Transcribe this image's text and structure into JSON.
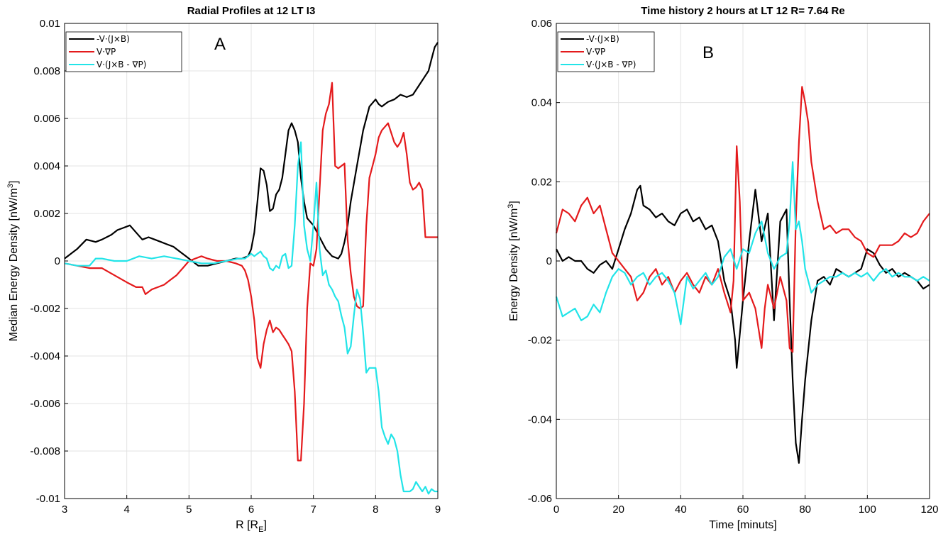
{
  "chart_data": [
    {
      "type": "line",
      "panel_label": "A",
      "title": "Radial Profiles at 12 LT I3",
      "xlabel": "R [R_E]",
      "xlabel_main": "R [R",
      "xlabel_sub": "E",
      "xlabel_close": "]",
      "ylabel": "Median Energy Density [nW/m3]",
      "ylabel_main": "Median Energy Density [nW/m",
      "ylabel_sup": "3",
      "ylabel_close": "]",
      "xlim": [
        3,
        9
      ],
      "ylim": [
        -0.01,
        0.01
      ],
      "xticks": [
        "3",
        "4",
        "5",
        "6",
        "7",
        "8",
        "9"
      ],
      "yticks": [
        "-0.01",
        "-0.008",
        "-0.006",
        "-0.004",
        "-0.002",
        "0",
        "0.002",
        "0.004",
        "0.006",
        "0.008",
        "0.01"
      ],
      "grid": true,
      "legend_position": "top-left",
      "series": [
        {
          "name": "-V·(J×B)",
          "color": "#000000",
          "x": [
            3.0,
            3.1,
            3.2,
            3.35,
            3.5,
            3.6,
            3.75,
            3.85,
            3.95,
            4.05,
            4.15,
            4.25,
            4.35,
            4.45,
            4.55,
            4.65,
            4.75,
            4.85,
            4.95,
            5.05,
            5.15,
            5.3,
            5.45,
            5.6,
            5.75,
            5.85,
            5.95,
            6.0,
            6.05,
            6.1,
            6.15,
            6.2,
            6.25,
            6.3,
            6.35,
            6.4,
            6.45,
            6.5,
            6.55,
            6.6,
            6.65,
            6.7,
            6.75,
            6.8,
            6.85,
            6.9,
            7.0,
            7.1,
            7.2,
            7.3,
            7.4,
            7.45,
            7.5,
            7.55,
            7.6,
            7.7,
            7.8,
            7.9,
            8.0,
            8.05,
            8.1,
            8.15,
            8.2,
            8.3,
            8.4,
            8.5,
            8.6,
            8.7,
            8.8,
            8.85,
            8.9,
            8.95,
            9.0
          ],
          "y": [
            0.0001,
            0.0003,
            0.0005,
            0.0009,
            0.0008,
            0.0009,
            0.0011,
            0.0013,
            0.0014,
            0.0015,
            0.0012,
            0.0009,
            0.001,
            0.0009,
            0.0008,
            0.0007,
            0.0006,
            0.0004,
            0.0002,
            0.0,
            -0.0002,
            -0.0002,
            -0.0001,
            0.0,
            0.0001,
            0.0001,
            0.0002,
            0.0005,
            0.0012,
            0.0025,
            0.0039,
            0.0038,
            0.0032,
            0.0021,
            0.0022,
            0.0028,
            0.003,
            0.0035,
            0.0045,
            0.0055,
            0.0058,
            0.0055,
            0.005,
            0.0035,
            0.0025,
            0.0018,
            0.0015,
            0.001,
            0.0005,
            0.0002,
            0.0001,
            0.0003,
            0.0008,
            0.0015,
            0.0025,
            0.004,
            0.0055,
            0.0065,
            0.0068,
            0.0066,
            0.0065,
            0.0066,
            0.0067,
            0.0068,
            0.007,
            0.0069,
            0.007,
            0.0074,
            0.0078,
            0.008,
            0.0085,
            0.009,
            0.0092
          ]
        },
        {
          "name": "V·∇P",
          "color": "#e41a1c",
          "x": [
            3.0,
            3.2,
            3.4,
            3.6,
            3.8,
            4.0,
            4.15,
            4.25,
            4.3,
            4.4,
            4.5,
            4.6,
            4.7,
            4.8,
            4.9,
            5.0,
            5.1,
            5.2,
            5.3,
            5.45,
            5.6,
            5.75,
            5.85,
            5.9,
            5.95,
            6.0,
            6.05,
            6.1,
            6.15,
            6.2,
            6.25,
            6.3,
            6.35,
            6.4,
            6.45,
            6.5,
            6.55,
            6.6,
            6.65,
            6.7,
            6.75,
            6.8,
            6.85,
            6.9,
            6.95,
            7.0,
            7.05,
            7.1,
            7.15,
            7.2,
            7.25,
            7.3,
            7.35,
            7.4,
            7.45,
            7.5,
            7.55,
            7.6,
            7.65,
            7.7,
            7.75,
            7.8,
            7.85,
            7.9,
            7.95,
            8.0,
            8.05,
            8.1,
            8.2,
            8.3,
            8.35,
            8.4,
            8.45,
            8.5,
            8.55,
            8.6,
            8.65,
            8.7,
            8.75,
            8.8,
            8.85,
            8.9,
            8.95,
            9.0
          ],
          "y": [
            -0.0001,
            -0.0002,
            -0.0003,
            -0.0003,
            -0.0006,
            -0.0009,
            -0.0011,
            -0.0011,
            -0.0014,
            -0.0012,
            -0.0011,
            -0.001,
            -0.0008,
            -0.0006,
            -0.0003,
            0.0,
            0.0001,
            0.0002,
            0.0001,
            0.0,
            0.0,
            -0.0001,
            -0.0002,
            -0.0004,
            -0.0008,
            -0.0015,
            -0.0025,
            -0.0041,
            -0.0045,
            -0.0035,
            -0.0029,
            -0.0025,
            -0.003,
            -0.0028,
            -0.0029,
            -0.0031,
            -0.0033,
            -0.0035,
            -0.0038,
            -0.0055,
            -0.0084,
            -0.0084,
            -0.006,
            -0.002,
            -0.0001,
            -0.0002,
            0.0005,
            0.003,
            0.0055,
            0.0062,
            0.0066,
            0.0075,
            0.004,
            0.0039,
            0.004,
            0.0041,
            0.0009,
            -0.0005,
            -0.0015,
            -0.0019,
            -0.002,
            -0.0019,
            0.0015,
            0.0035,
            0.004,
            0.0045,
            0.0052,
            0.0055,
            0.0058,
            0.005,
            0.0048,
            0.005,
            0.0054,
            0.0045,
            0.0033,
            0.003,
            0.0031,
            0.0033,
            0.003,
            0.001,
            0.001,
            0.001,
            0.001,
            0.001
          ]
        },
        {
          "name": "V·(J×B - ∇P)",
          "color": "#22e4e8",
          "x": [
            3.0,
            3.2,
            3.4,
            3.5,
            3.6,
            3.8,
            4.0,
            4.2,
            4.4,
            4.6,
            4.8,
            5.0,
            5.2,
            5.4,
            5.6,
            5.8,
            5.9,
            6.0,
            6.05,
            6.1,
            6.15,
            6.2,
            6.25,
            6.3,
            6.35,
            6.4,
            6.45,
            6.5,
            6.55,
            6.6,
            6.65,
            6.7,
            6.75,
            6.8,
            6.85,
            6.9,
            6.95,
            7.0,
            7.05,
            7.1,
            7.15,
            7.2,
            7.25,
            7.3,
            7.35,
            7.4,
            7.45,
            7.5,
            7.55,
            7.6,
            7.65,
            7.7,
            7.75,
            7.8,
            7.85,
            7.9,
            8.0,
            8.05,
            8.1,
            8.15,
            8.2,
            8.25,
            8.3,
            8.35,
            8.4,
            8.45,
            8.5,
            8.55,
            8.6,
            8.65,
            8.7,
            8.75,
            8.8,
            8.85,
            8.9,
            8.95,
            9.0
          ],
          "y": [
            -0.0001,
            -0.0002,
            -0.0002,
            0.0001,
            0.0001,
            0.0,
            0.0,
            0.0002,
            0.0001,
            0.0002,
            0.0001,
            0.0,
            -0.0001,
            -0.0001,
            0.0,
            0.0001,
            0.0001,
            0.0003,
            0.0002,
            0.0003,
            0.0004,
            0.0002,
            0.0001,
            -0.0003,
            -0.0004,
            -0.0002,
            -0.0003,
            0.0002,
            0.0003,
            -0.0003,
            -0.0002,
            0.0015,
            0.004,
            0.005,
            0.0015,
            0.0005,
            0.0,
            0.0015,
            0.0033,
            0.0005,
            -0.0006,
            -0.0004,
            -0.001,
            -0.0012,
            -0.0015,
            -0.0017,
            -0.0023,
            -0.0028,
            -0.0039,
            -0.0036,
            -0.0023,
            -0.0012,
            -0.0016,
            -0.003,
            -0.0047,
            -0.0045,
            -0.0045,
            -0.0055,
            -0.007,
            -0.0074,
            -0.0077,
            -0.0073,
            -0.0075,
            -0.008,
            -0.009,
            -0.0097,
            -0.0097,
            -0.0097,
            -0.0096,
            -0.0093,
            -0.0095,
            -0.0097,
            -0.0095,
            -0.0098,
            -0.0096,
            -0.0097,
            -0.0097
          ]
        }
      ]
    },
    {
      "type": "line",
      "panel_label": "B",
      "title": "Time history 2 hours  at LT 12  R= 7.64 Re",
      "xlabel": "Time [minuts]",
      "ylabel": "Energy Density [nW/m3]",
      "ylabel_main": "Energy Density [nW/m",
      "ylabel_sup": "3",
      "ylabel_close": "]",
      "xlim": [
        0,
        120
      ],
      "ylim": [
        -0.06,
        0.06
      ],
      "xticks": [
        "0",
        "20",
        "40",
        "60",
        "80",
        "100",
        "120"
      ],
      "yticks": [
        "-0.06",
        "-0.04",
        "-0.02",
        "0",
        "0.02",
        "0.04",
        "0.06"
      ],
      "grid": true,
      "legend_position": "top-left",
      "series": [
        {
          "name": "-V·(J×B)",
          "color": "#000000",
          "x": [
            0,
            2,
            4,
            6,
            8,
            10,
            12,
            14,
            16,
            18,
            20,
            22,
            24,
            26,
            27,
            28,
            30,
            32,
            34,
            36,
            38,
            40,
            42,
            44,
            46,
            48,
            50,
            52,
            54,
            56,
            57.5,
            58,
            60,
            62,
            64,
            66,
            68,
            70,
            72,
            74,
            75,
            76,
            77,
            78,
            79,
            80,
            82,
            84,
            86,
            88,
            90,
            92,
            94,
            96,
            98,
            100,
            102,
            104,
            106,
            108,
            110,
            112,
            114,
            116,
            118,
            120
          ],
          "y": [
            0.003,
            0.0,
            0.001,
            0.0,
            0.0,
            -0.002,
            -0.003,
            -0.001,
            0.0,
            -0.002,
            0.003,
            0.008,
            0.012,
            0.018,
            0.019,
            0.014,
            0.013,
            0.011,
            0.012,
            0.01,
            0.009,
            0.012,
            0.013,
            0.01,
            0.011,
            0.008,
            0.009,
            0.005,
            -0.005,
            -0.01,
            -0.02,
            -0.027,
            -0.01,
            0.005,
            0.018,
            0.005,
            0.012,
            -0.015,
            0.01,
            0.013,
            -0.01,
            -0.03,
            -0.046,
            -0.051,
            -0.04,
            -0.03,
            -0.015,
            -0.005,
            -0.004,
            -0.006,
            -0.002,
            -0.003,
            -0.004,
            -0.003,
            -0.002,
            0.003,
            0.002,
            -0.001,
            -0.003,
            -0.002,
            -0.004,
            -0.003,
            -0.004,
            -0.005,
            -0.007,
            -0.006
          ]
        },
        {
          "name": "V·∇P",
          "color": "#e41a1c",
          "x": [
            0,
            2,
            4,
            6,
            8,
            10,
            12,
            14,
            16,
            18,
            20,
            22,
            24,
            26,
            28,
            30,
            32,
            34,
            36,
            38,
            40,
            42,
            44,
            46,
            48,
            50,
            52,
            54,
            56,
            57,
            58,
            59,
            60,
            62,
            64,
            66,
            67,
            68,
            70,
            72,
            74,
            75,
            76,
            77,
            78,
            79,
            80,
            81,
            82,
            84,
            86,
            88,
            90,
            92,
            94,
            96,
            98,
            100,
            102,
            104,
            106,
            108,
            110,
            112,
            114,
            116,
            118,
            120
          ],
          "y": [
            0.007,
            0.013,
            0.012,
            0.01,
            0.014,
            0.016,
            0.012,
            0.014,
            0.008,
            0.002,
            0.0,
            -0.002,
            -0.004,
            -0.01,
            -0.008,
            -0.004,
            -0.002,
            -0.006,
            -0.004,
            -0.008,
            -0.005,
            -0.003,
            -0.006,
            -0.008,
            -0.004,
            -0.006,
            -0.002,
            -0.008,
            -0.013,
            -0.005,
            0.029,
            0.015,
            -0.01,
            -0.008,
            -0.012,
            -0.022,
            -0.012,
            -0.006,
            -0.012,
            -0.004,
            -0.01,
            -0.022,
            -0.023,
            0.01,
            0.03,
            0.044,
            0.04,
            0.035,
            0.025,
            0.015,
            0.008,
            0.009,
            0.007,
            0.008,
            0.008,
            0.006,
            0.005,
            0.002,
            0.001,
            0.004,
            0.004,
            0.004,
            0.005,
            0.007,
            0.006,
            0.007,
            0.01,
            0.012
          ]
        },
        {
          "name": "V·(J×B - ∇P)",
          "color": "#22e4e8",
          "x": [
            0,
            2,
            4,
            6,
            8,
            10,
            12,
            14,
            16,
            18,
            20,
            22,
            24,
            26,
            28,
            30,
            32,
            34,
            36,
            38,
            40,
            42,
            44,
            46,
            48,
            50,
            52,
            54,
            56,
            58,
            60,
            62,
            64,
            66,
            68,
            70,
            72,
            74,
            75,
            76,
            77,
            78,
            79,
            80,
            82,
            84,
            86,
            88,
            90,
            92,
            94,
            96,
            98,
            100,
            102,
            104,
            106,
            108,
            110,
            112,
            114,
            116,
            118,
            120
          ],
          "y": [
            -0.009,
            -0.014,
            -0.013,
            -0.012,
            -0.015,
            -0.014,
            -0.011,
            -0.013,
            -0.008,
            -0.004,
            -0.002,
            -0.003,
            -0.006,
            -0.004,
            -0.003,
            -0.006,
            -0.004,
            -0.003,
            -0.005,
            -0.008,
            -0.016,
            -0.004,
            -0.007,
            -0.005,
            -0.003,
            -0.006,
            -0.004,
            0.001,
            0.003,
            -0.002,
            0.003,
            0.002,
            0.007,
            0.01,
            0.002,
            -0.002,
            0.001,
            0.002,
            0.01,
            0.025,
            0.008,
            0.01,
            0.005,
            -0.002,
            -0.008,
            -0.006,
            -0.005,
            -0.004,
            -0.004,
            -0.003,
            -0.004,
            -0.003,
            -0.004,
            -0.003,
            -0.005,
            -0.003,
            -0.002,
            -0.004,
            -0.003,
            -0.004,
            -0.004,
            -0.005,
            -0.004,
            -0.005
          ]
        }
      ]
    }
  ]
}
